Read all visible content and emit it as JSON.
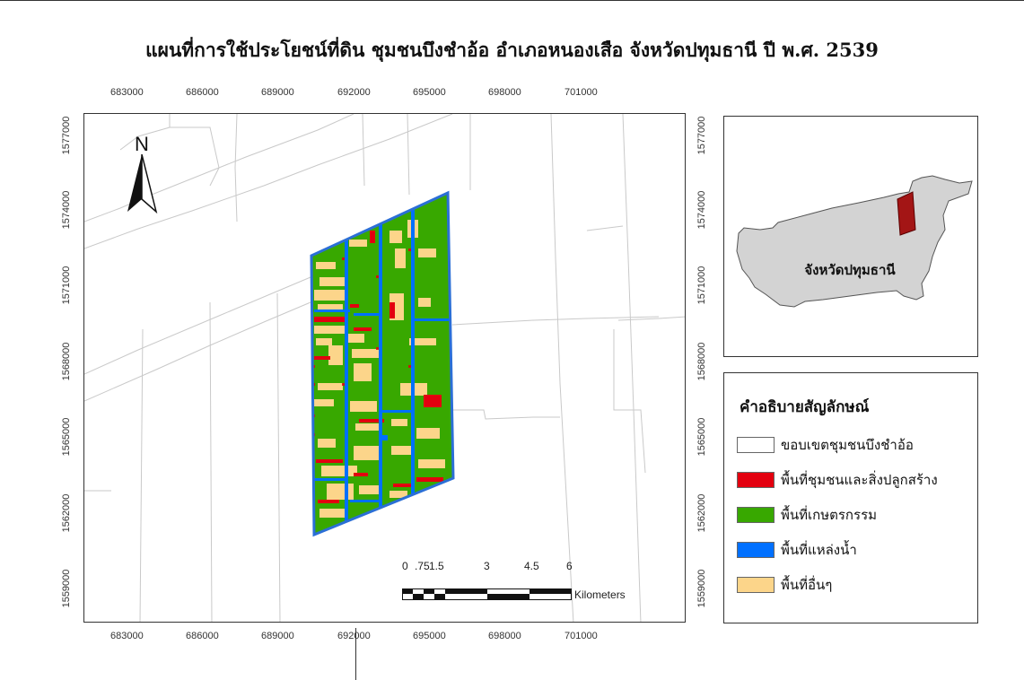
{
  "title": "แผนที่การใช้ประโยชน์ที่ดิน ชุมชนบึงชำอ้อ อำเภอหนองเสือ จังหวัดปทุมธานี ปี พ.ศ. 2539",
  "x_ticks": [
    "683000",
    "686000",
    "689000",
    "692000",
    "695000",
    "698000",
    "701000"
  ],
  "y_ticks": [
    "1577000",
    "1574000",
    "1571000",
    "1568000",
    "1565000",
    "1562000",
    "1559000"
  ],
  "north_arrow": {
    "label": "N",
    "icon": "north-arrow-icon"
  },
  "inset": {
    "label": "จังหวัดปทุมธานี",
    "province_fill": "#d3d3d3",
    "study_area_fill": "#a31515"
  },
  "legend": {
    "title": "คำอธิบายสัญลักษณ์",
    "items": [
      {
        "label": "ขอบเขตชุมชนบึงชำอ้อ",
        "color": "#ffffff"
      },
      {
        "label": "พื้นที่ชุมชนและสิ่งปลูกสร้าง",
        "color": "#e3000f"
      },
      {
        "label": "พื้นที่เกษตรกรรม",
        "color": "#38a800"
      },
      {
        "label": "พื้นที่แหล่งน้ำ",
        "color": "#0070ff"
      },
      {
        "label": "พื้นที่อื่นๆ",
        "color": "#fcd58a"
      }
    ]
  },
  "scale": {
    "ticks": [
      "0",
      ".75",
      "1.5",
      "3",
      "4.5",
      "6"
    ],
    "unit": "Kilometers"
  }
}
